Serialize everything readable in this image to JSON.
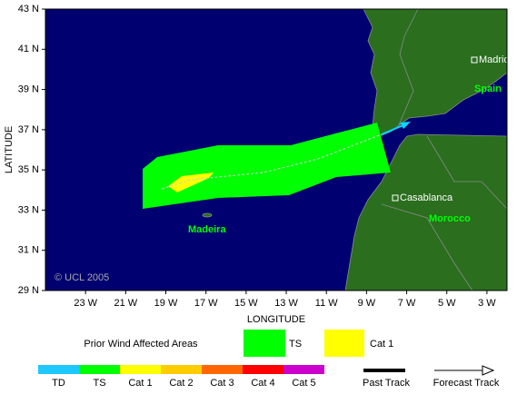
{
  "map": {
    "x_axis_label": "LONGITUDE",
    "y_axis_label": "LATITUDE",
    "xlim": [
      -25,
      -2
    ],
    "ylim": [
      29,
      43
    ],
    "xticks": [
      {
        "value": -23,
        "label": "23 W"
      },
      {
        "value": -21,
        "label": "21 W"
      },
      {
        "value": -19,
        "label": "19 W"
      },
      {
        "value": -17,
        "label": "17 W"
      },
      {
        "value": -15,
        "label": "15 W"
      },
      {
        "value": -13,
        "label": "13 W"
      },
      {
        "value": -11,
        "label": "11 W"
      },
      {
        "value": -9,
        "label": "9 W"
      },
      {
        "value": -7,
        "label": "7 W"
      },
      {
        "value": -5,
        "label": "5 W"
      },
      {
        "value": -3,
        "label": "3 W"
      }
    ],
    "yticks": [
      {
        "value": 29,
        "label": "29 N"
      },
      {
        "value": 31,
        "label": "31 N"
      },
      {
        "value": 33,
        "label": "33 N"
      },
      {
        "value": 35,
        "label": "35 N"
      },
      {
        "value": 37,
        "label": "37 N"
      },
      {
        "value": 39,
        "label": "39 N"
      },
      {
        "value": 41,
        "label": "41 N"
      },
      {
        "value": 43,
        "label": "43 N"
      }
    ],
    "places": {
      "madrid": "Madrid",
      "spain": "Spain",
      "casablanca": "Casablanca",
      "morocco": "Morocco",
      "madeira": "Madeira"
    },
    "copyright": "© UCL 2005"
  },
  "legend": {
    "areas_title": "Prior Wind Affected Areas",
    "areas": [
      "TS",
      "Cat 1"
    ],
    "scale": [
      "TD",
      "TS",
      "Cat 1",
      "Cat 2",
      "Cat 3",
      "Cat 4",
      "Cat 5"
    ],
    "past_track": "Past Track",
    "forecast_track": "Forecast Track"
  }
}
